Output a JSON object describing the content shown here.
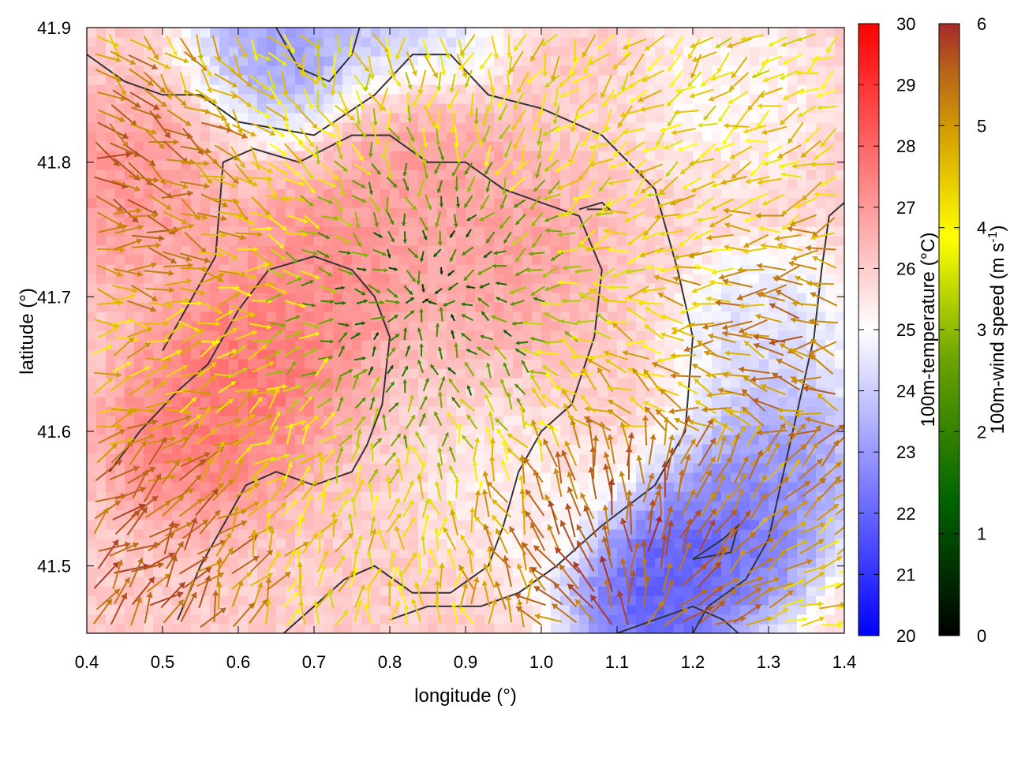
{
  "chart_data": {
    "type": "heatmap",
    "overlay": "vector-field",
    "xlabel": "longitude (°)",
    "ylabel": "latitude (°)",
    "xlim": [
      0.4,
      1.4
    ],
    "ylim": [
      41.45,
      41.9
    ],
    "xticks": [
      "0.4",
      "0.5",
      "0.6",
      "0.7",
      "0.8",
      "0.9",
      "1.0",
      "1.1",
      "1.2",
      "1.3",
      "1.4"
    ],
    "yticks": [
      "41.5",
      "41.6",
      "41.7",
      "41.8",
      "41.9"
    ],
    "xtick_values": [
      0.4,
      0.5,
      0.6,
      0.7,
      0.8,
      0.9,
      1.0,
      1.1,
      1.2,
      1.3,
      1.4
    ],
    "ytick_values": [
      41.5,
      41.6,
      41.7,
      41.8,
      41.9
    ],
    "grid": false,
    "colorbars": [
      {
        "label": "100m-temperature (°C)",
        "range": [
          20,
          30
        ],
        "ticks": [
          "20",
          "21",
          "22",
          "23",
          "24",
          "25",
          "26",
          "27",
          "28",
          "29",
          "30"
        ],
        "tick_values": [
          20,
          21,
          22,
          23,
          24,
          25,
          26,
          27,
          28,
          29,
          30
        ],
        "palette": [
          "#0000ff",
          "#ffffff",
          "#ff0000"
        ]
      },
      {
        "label": "100m-wind speed (m s",
        "label_sup": "-1",
        "label_end": ")",
        "range": [
          0,
          6
        ],
        "ticks": [
          "0",
          "1",
          "2",
          "3",
          "4",
          "5",
          "6"
        ],
        "tick_values": [
          0,
          1,
          2,
          3,
          4,
          5,
          6
        ],
        "palette": [
          "#000000",
          "#006400",
          "#6aa300",
          "#ffff00",
          "#d4a000",
          "#b8651a",
          "#a52a2a"
        ]
      }
    ],
    "temperature_field": {
      "background": 26,
      "features": [
        {
          "lon": 0.62,
          "lat": 41.65,
          "value": 28
        },
        {
          "lon": 0.55,
          "lat": 41.6,
          "value": 27.8
        },
        {
          "lon": 0.83,
          "lat": 41.82,
          "value": 27.3
        },
        {
          "lon": 0.95,
          "lat": 41.73,
          "value": 27
        },
        {
          "lon": 0.45,
          "lat": 41.78,
          "value": 27.2
        },
        {
          "lon": 0.72,
          "lat": 41.72,
          "value": 27.5
        },
        {
          "lon": 1.15,
          "lat": 41.48,
          "value": 21
        },
        {
          "lon": 1.25,
          "lat": 41.52,
          "value": 21.5
        },
        {
          "lon": 1.32,
          "lat": 41.58,
          "value": 22.5
        },
        {
          "lon": 0.67,
          "lat": 41.89,
          "value": 22.5
        },
        {
          "lon": 0.82,
          "lat": 41.89,
          "value": 23.5
        },
        {
          "lon": 1.3,
          "lat": 41.67,
          "value": 24
        },
        {
          "lon": 1.25,
          "lat": 41.85,
          "value": 25
        },
        {
          "lon": 0.97,
          "lat": 41.55,
          "value": 25.2
        }
      ]
    },
    "wind_field": {
      "convergence_center": {
        "lon": 0.85,
        "lat": 41.7
      },
      "features": [
        {
          "lon": 0.85,
          "lat": 41.7,
          "speed": 0.3
        },
        {
          "lon": 1.12,
          "lat": 41.5,
          "speed": 6
        },
        {
          "lon": 0.45,
          "lat": 41.5,
          "speed": 5.8
        },
        {
          "lon": 0.42,
          "lat": 41.8,
          "speed": 5.5
        },
        {
          "lon": 1.38,
          "lat": 41.65,
          "speed": 5.2
        }
      ]
    },
    "contours": [
      [
        [
          0.4,
          41.88
        ],
        [
          0.45,
          41.86
        ],
        [
          0.5,
          41.85
        ],
        [
          0.55,
          41.85
        ],
        [
          0.6,
          41.83
        ],
        [
          0.7,
          41.82
        ],
        [
          0.78,
          41.85
        ],
        [
          0.83,
          41.88
        ],
        [
          0.88,
          41.88
        ],
        [
          0.93,
          41.85
        ],
        [
          1.0,
          41.84
        ],
        [
          1.08,
          41.82
        ],
        [
          1.15,
          41.78
        ],
        [
          1.18,
          41.72
        ],
        [
          1.2,
          41.67
        ],
        [
          1.19,
          41.6
        ],
        [
          1.15,
          41.56
        ],
        [
          1.08,
          41.53
        ],
        [
          1.02,
          41.5
        ],
        [
          0.97,
          41.48
        ],
        [
          0.92,
          41.47
        ],
        [
          0.85,
          41.47
        ],
        [
          0.8,
          41.46
        ]
      ],
      [
        [
          0.5,
          41.66
        ],
        [
          0.54,
          41.7
        ],
        [
          0.57,
          41.73
        ],
        [
          0.58,
          41.8
        ],
        [
          0.62,
          41.81
        ],
        [
          0.68,
          41.8
        ],
        [
          0.75,
          41.82
        ],
        [
          0.8,
          41.82
        ],
        [
          0.85,
          41.8
        ],
        [
          0.9,
          41.8
        ],
        [
          0.95,
          41.78
        ],
        [
          1.0,
          41.77
        ],
        [
          1.05,
          41.76
        ],
        [
          1.08,
          41.72
        ],
        [
          1.07,
          41.67
        ],
        [
          1.04,
          41.62
        ],
        [
          1.0,
          41.6
        ],
        [
          0.97,
          41.57
        ],
        [
          0.95,
          41.53
        ],
        [
          0.93,
          41.5
        ],
        [
          0.88,
          41.48
        ],
        [
          0.83,
          41.48
        ],
        [
          0.78,
          41.5
        ],
        [
          0.74,
          41.49
        ],
        [
          0.7,
          41.47
        ],
        [
          0.66,
          41.45
        ]
      ],
      [
        [
          0.43,
          41.57
        ],
        [
          0.47,
          41.6
        ],
        [
          0.52,
          41.63
        ],
        [
          0.56,
          41.65
        ],
        [
          0.6,
          41.69
        ],
        [
          0.64,
          41.72
        ],
        [
          0.7,
          41.73
        ],
        [
          0.75,
          41.72
        ],
        [
          0.78,
          41.7
        ],
        [
          0.8,
          41.67
        ],
        [
          0.79,
          41.62
        ],
        [
          0.77,
          41.59
        ],
        [
          0.75,
          41.57
        ],
        [
          0.7,
          41.56
        ],
        [
          0.65,
          41.57
        ],
        [
          0.61,
          41.56
        ],
        [
          0.58,
          41.53
        ],
        [
          0.55,
          41.5
        ],
        [
          0.52,
          41.46
        ]
      ],
      [
        [
          0.65,
          41.9
        ],
        [
          0.68,
          41.87
        ],
        [
          0.72,
          41.86
        ],
        [
          0.75,
          41.88
        ],
        [
          0.76,
          41.9
        ]
      ],
      [
        [
          1.2,
          41.45
        ],
        [
          1.22,
          41.47
        ],
        [
          1.27,
          41.49
        ],
        [
          1.3,
          41.52
        ],
        [
          1.32,
          41.57
        ],
        [
          1.34,
          41.62
        ],
        [
          1.36,
          41.67
        ],
        [
          1.37,
          41.72
        ],
        [
          1.38,
          41.76
        ],
        [
          1.4,
          41.77
        ]
      ],
      [
        [
          1.1,
          41.45
        ],
        [
          1.15,
          41.46
        ],
        [
          1.2,
          41.47
        ],
        [
          1.24,
          41.46
        ],
        [
          1.26,
          41.45
        ]
      ],
      [
        [
          1.2,
          41.505
        ],
        [
          1.25,
          41.51
        ],
        [
          1.26,
          41.53
        ],
        [
          1.24,
          41.52
        ],
        [
          1.2,
          41.505
        ]
      ],
      [
        [
          1.05,
          41.765
        ],
        [
          1.08,
          41.77
        ],
        [
          1.09,
          41.765
        ],
        [
          1.06,
          41.765
        ]
      ]
    ]
  }
}
